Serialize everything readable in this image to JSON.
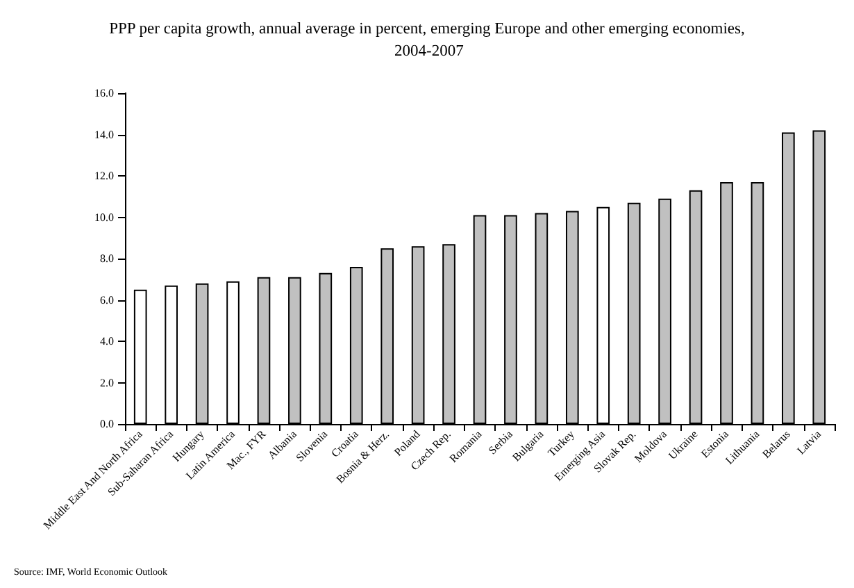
{
  "chart_data": {
    "type": "bar",
    "title": "PPP per capita growth, annual average in percent, emerging Europe and other emerging economies, 2004-2007",
    "categories": [
      "Middle East And North Africa",
      "Sub-Saharan Africa",
      "Hungary",
      "Latin America",
      "Mac., FYR",
      "Albania",
      "Slovenia",
      "Croatia",
      "Bosnia & Herz.",
      "Poland",
      "Czech Rep.",
      "Romania",
      "Serbia",
      "Bulgaria",
      "Turkey",
      "Emerging Asia",
      "Slovak Rep.",
      "Moldova",
      "Ukraine",
      "Estonia",
      "Lithuania",
      "Belarus",
      "Latvia"
    ],
    "values": [
      6.5,
      6.7,
      6.8,
      6.9,
      7.1,
      7.1,
      7.3,
      7.6,
      8.5,
      8.6,
      8.7,
      10.1,
      10.1,
      10.2,
      10.3,
      10.5,
      10.7,
      10.9,
      11.3,
      11.7,
      11.7,
      14.1,
      14.2
    ],
    "colors": [
      "#ffffff",
      "#ffffff",
      "#c0c0c0",
      "#ffffff",
      "#c0c0c0",
      "#c0c0c0",
      "#c0c0c0",
      "#c0c0c0",
      "#c0c0c0",
      "#c0c0c0",
      "#c0c0c0",
      "#c0c0c0",
      "#c0c0c0",
      "#c0c0c0",
      "#c0c0c0",
      "#ffffff",
      "#c0c0c0",
      "#c0c0c0",
      "#c0c0c0",
      "#c0c0c0",
      "#c0c0c0",
      "#c0c0c0",
      "#c0c0c0"
    ],
    "ylim": [
      0,
      16
    ],
    "yticks": [
      {
        "value": 0,
        "label": "0.0"
      },
      {
        "value": 2,
        "label": "2.0"
      },
      {
        "value": 4,
        "label": "4.0"
      },
      {
        "value": 6,
        "label": "6.0"
      },
      {
        "value": 8,
        "label": "8.0"
      },
      {
        "value": 10,
        "label": "10.0"
      },
      {
        "value": 12,
        "label": "12.0"
      },
      {
        "value": 14,
        "label": "14.0"
      },
      {
        "value": 16,
        "label": "16.0"
      }
    ],
    "grid": false,
    "annotations": [
      "Source: IMF, World Economic Outlook"
    ]
  }
}
